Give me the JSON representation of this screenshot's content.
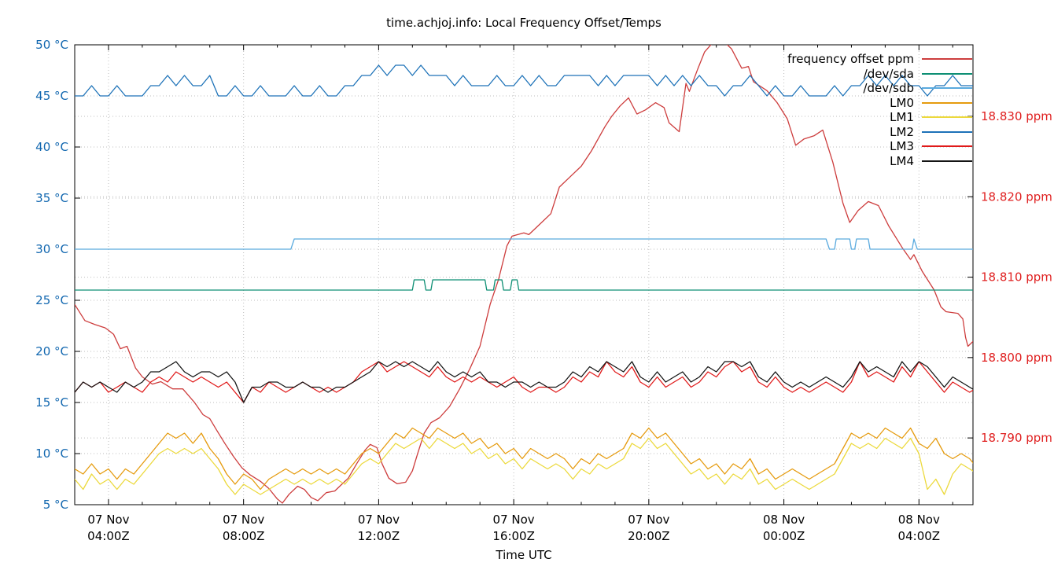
{
  "chart_data": {
    "type": "line",
    "title": "time.achjoj.info: Local Frequency Offset/Temps",
    "xlabel": "Time UTC",
    "grid": "dotted",
    "legend_position": "top-right-inside",
    "x_axis": {
      "unit": "hours UTC from 07 Nov 00:00Z",
      "range_hours": [
        3.0,
        29.6
      ],
      "major_tick_hours": [
        4,
        8,
        12,
        16,
        20,
        24,
        28
      ],
      "minor_tick_every_hours": 1,
      "major_tick_labels": [
        [
          "07 Nov",
          "04:00Z"
        ],
        [
          "07 Nov",
          "08:00Z"
        ],
        [
          "07 Nov",
          "12:00Z"
        ],
        [
          "07 Nov",
          "16:00Z"
        ],
        [
          "07 Nov",
          "20:00Z"
        ],
        [
          "08 Nov",
          "00:00Z"
        ],
        [
          "08 Nov",
          "04:00Z"
        ]
      ]
    },
    "y_left_axis": {
      "unit": "°C",
      "range": [
        5,
        50
      ],
      "ticks": [
        5,
        10,
        15,
        20,
        25,
        30,
        35,
        40,
        45,
        50
      ],
      "tick_suffix": " °C",
      "label_color": "#1368b0"
    },
    "y_right_axis": {
      "unit": "ppm",
      "range": [
        18.7817,
        18.8389
      ],
      "ticks": [
        18.79,
        18.8,
        18.81,
        18.82,
        18.83
      ],
      "tick_suffix": " ppm",
      "tick_decimals": 3,
      "label_color": "#e02222"
    },
    "series": [
      {
        "name": "frequency offset ppm",
        "color": "#cd3d3d",
        "axis": "right",
        "points": [
          [
            3.0,
            18.8066
          ],
          [
            3.3,
            18.8046
          ],
          [
            3.6,
            18.8041
          ],
          [
            3.9,
            18.8037
          ],
          [
            4.0,
            18.8034
          ],
          [
            4.15,
            18.8029
          ],
          [
            4.35,
            18.8011
          ],
          [
            4.55,
            18.8014
          ],
          [
            4.8,
            18.7987
          ],
          [
            5.0,
            18.7976
          ],
          [
            5.3,
            18.7967
          ],
          [
            5.55,
            18.797
          ],
          [
            5.9,
            18.7961
          ],
          [
            6.2,
            18.7961
          ],
          [
            6.55,
            18.7944
          ],
          [
            6.8,
            18.7929
          ],
          [
            7.0,
            18.7924
          ],
          [
            7.2,
            18.791
          ],
          [
            7.45,
            18.7893
          ],
          [
            7.7,
            18.7877
          ],
          [
            7.95,
            18.7863
          ],
          [
            8.2,
            18.7854
          ],
          [
            8.5,
            18.7846
          ],
          [
            8.75,
            18.7837
          ],
          [
            9.0,
            18.7824
          ],
          [
            9.15,
            18.7819
          ],
          [
            9.35,
            18.783
          ],
          [
            9.6,
            18.784
          ],
          [
            9.8,
            18.7836
          ],
          [
            10.0,
            18.7826
          ],
          [
            10.2,
            18.7822
          ],
          [
            10.45,
            18.7832
          ],
          [
            10.7,
            18.7834
          ],
          [
            10.9,
            18.7842
          ],
          [
            11.1,
            18.785
          ],
          [
            11.35,
            18.7868
          ],
          [
            11.6,
            18.7885
          ],
          [
            11.75,
            18.7892
          ],
          [
            11.95,
            18.7888
          ],
          [
            12.1,
            18.7868
          ],
          [
            12.3,
            18.785
          ],
          [
            12.55,
            18.7843
          ],
          [
            12.8,
            18.7845
          ],
          [
            13.0,
            18.7859
          ],
          [
            13.15,
            18.788
          ],
          [
            13.35,
            18.7906
          ],
          [
            13.55,
            18.7919
          ],
          [
            13.8,
            18.7925
          ],
          [
            14.1,
            18.7939
          ],
          [
            14.4,
            18.7961
          ],
          [
            14.7,
            18.7986
          ],
          [
            15.0,
            18.8014
          ],
          [
            15.3,
            18.8066
          ],
          [
            15.55,
            18.8097
          ],
          [
            15.8,
            18.8139
          ],
          [
            15.95,
            18.8151
          ],
          [
            16.3,
            18.8155
          ],
          [
            16.45,
            18.8153
          ],
          [
            16.7,
            18.8163
          ],
          [
            17.1,
            18.8179
          ],
          [
            17.35,
            18.8212
          ],
          [
            17.7,
            18.8226
          ],
          [
            18.0,
            18.8238
          ],
          [
            18.3,
            18.8257
          ],
          [
            18.7,
            18.8287
          ],
          [
            18.9,
            18.83
          ],
          [
            19.15,
            18.8313
          ],
          [
            19.4,
            18.8323
          ],
          [
            19.65,
            18.8303
          ],
          [
            19.9,
            18.8308
          ],
          [
            20.2,
            18.8317
          ],
          [
            20.45,
            18.8311
          ],
          [
            20.6,
            18.8292
          ],
          [
            20.9,
            18.8281
          ],
          [
            21.1,
            18.8341
          ],
          [
            21.2,
            18.8331
          ],
          [
            21.45,
            18.8359
          ],
          [
            21.65,
            18.838
          ],
          [
            21.9,
            18.8392
          ],
          [
            22.3,
            18.839
          ],
          [
            22.45,
            18.8384
          ],
          [
            22.75,
            18.836
          ],
          [
            22.95,
            18.8362
          ],
          [
            23.1,
            18.8343
          ],
          [
            23.5,
            18.8332
          ],
          [
            23.8,
            18.8317
          ],
          [
            24.1,
            18.8297
          ],
          [
            24.35,
            18.8264
          ],
          [
            24.6,
            18.8272
          ],
          [
            24.9,
            18.8276
          ],
          [
            25.15,
            18.8283
          ],
          [
            25.45,
            18.8243
          ],
          [
            25.75,
            18.8192
          ],
          [
            25.95,
            18.8168
          ],
          [
            26.2,
            18.8183
          ],
          [
            26.5,
            18.8194
          ],
          [
            26.8,
            18.8189
          ],
          [
            27.1,
            18.8164
          ],
          [
            27.5,
            18.8137
          ],
          [
            27.75,
            18.8122
          ],
          [
            27.85,
            18.8128
          ],
          [
            28.1,
            18.8107
          ],
          [
            28.45,
            18.8084
          ],
          [
            28.65,
            18.8063
          ],
          [
            28.8,
            18.8057
          ],
          [
            29.15,
            18.8055
          ],
          [
            29.3,
            18.8048
          ],
          [
            29.38,
            18.8025
          ],
          [
            29.45,
            18.8014
          ],
          [
            29.6,
            18.802
          ]
        ]
      },
      {
        "name": "/dev/sda",
        "color": "#0e8f74",
        "axis": "left",
        "points": [
          [
            3.0,
            26
          ],
          [
            13.0,
            26
          ],
          [
            13.05,
            27
          ],
          [
            13.35,
            27
          ],
          [
            13.4,
            26
          ],
          [
            13.55,
            26
          ],
          [
            13.6,
            27
          ],
          [
            15.15,
            27
          ],
          [
            15.2,
            26
          ],
          [
            15.4,
            26
          ],
          [
            15.45,
            27
          ],
          [
            15.65,
            27
          ],
          [
            15.7,
            26
          ],
          [
            15.9,
            26
          ],
          [
            15.95,
            27
          ],
          [
            16.1,
            27
          ],
          [
            16.15,
            26
          ],
          [
            29.6,
            26
          ]
        ]
      },
      {
        "name": "/dev/sdb",
        "color": "#5aaade",
        "axis": "left",
        "points": [
          [
            3.0,
            30
          ],
          [
            9.4,
            30
          ],
          [
            9.5,
            31
          ],
          [
            25.25,
            31
          ],
          [
            25.35,
            30
          ],
          [
            25.5,
            30
          ],
          [
            25.55,
            31
          ],
          [
            25.95,
            31
          ],
          [
            26.0,
            30
          ],
          [
            26.1,
            30
          ],
          [
            26.15,
            31
          ],
          [
            26.5,
            31
          ],
          [
            26.55,
            30
          ],
          [
            27.8,
            30
          ],
          [
            27.85,
            31
          ],
          [
            27.95,
            30
          ],
          [
            29.6,
            30
          ]
        ]
      },
      {
        "name": "LM0",
        "color": "#e59b0e",
        "axis": "left",
        "t0": 3.0,
        "dt": 0.25,
        "values": [
          8.5,
          8,
          9,
          8,
          8.5,
          7.5,
          8.5,
          8,
          9,
          10,
          11,
          12,
          11.5,
          12,
          11,
          12,
          10.5,
          9.5,
          8,
          7,
          8,
          7.5,
          6.5,
          7.5,
          8,
          8.5,
          8,
          8.5,
          8,
          8.5,
          8,
          8.5,
          8,
          9,
          10,
          10.5,
          10,
          11,
          12,
          11.5,
          12.5,
          12,
          11.5,
          12.5,
          12,
          11.5,
          12,
          11,
          11.5,
          10.5,
          11,
          10,
          10.5,
          9.5,
          10.5,
          10,
          9.5,
          10,
          9.5,
          8.5,
          9.5,
          9,
          10,
          9.5,
          10,
          10.5,
          12,
          11.5,
          12.5,
          11.5,
          12,
          11,
          10,
          9,
          9.5,
          8.5,
          9,
          8,
          9,
          8.5,
          9.5,
          8,
          8.5,
          7.5,
          8,
          8.5,
          8,
          7.5,
          8,
          8.5,
          9,
          10.5,
          12,
          11.5,
          12,
          11.5,
          12.5,
          12,
          11.5,
          12.5,
          11,
          10.5,
          11.5,
          10,
          9.5,
          10,
          9.5,
          8.5
        ]
      },
      {
        "name": "LM1",
        "color": "#ecd93c",
        "axis": "left",
        "t0": 3.0,
        "dt": 0.25,
        "values": [
          7.5,
          6.5,
          8,
          7,
          7.5,
          6.5,
          7.5,
          7,
          8,
          9,
          10,
          10.5,
          10,
          10.5,
          10,
          10.5,
          9.5,
          8.5,
          7,
          6,
          7,
          6.5,
          6,
          6.5,
          7,
          7.5,
          7,
          7.5,
          7,
          7.5,
          7,
          7.5,
          7,
          8,
          9,
          9.5,
          9,
          10,
          11,
          10.5,
          11,
          11.5,
          10.5,
          11.5,
          11,
          10.5,
          11,
          10,
          10.5,
          9.5,
          10,
          9,
          9.5,
          8.5,
          9.5,
          9,
          8.5,
          9,
          8.5,
          7.5,
          8.5,
          8,
          9,
          8.5,
          9,
          9.5,
          11,
          10.5,
          11.5,
          10.5,
          11,
          10,
          9,
          8,
          8.5,
          7.5,
          8,
          7,
          8,
          7.5,
          8.5,
          7,
          7.5,
          6.5,
          7,
          7.5,
          7,
          6.5,
          7,
          7.5,
          8,
          9.5,
          11,
          10.5,
          11,
          10.5,
          11.5,
          11,
          10.5,
          11.5,
          10,
          6.5,
          7.5,
          6,
          8,
          9,
          8.5,
          8
        ]
      },
      {
        "name": "LM2",
        "color": "#1d72b8",
        "axis": "left",
        "t0": 3.0,
        "dt": 0.25,
        "values": [
          45,
          45,
          46,
          45,
          45,
          46,
          45,
          45,
          45,
          46,
          46,
          47,
          46,
          47,
          46,
          46,
          47,
          45,
          45,
          46,
          45,
          45,
          46,
          45,
          45,
          45,
          46,
          45,
          45,
          46,
          45,
          45,
          46,
          46,
          47,
          47,
          48,
          47,
          48,
          48,
          47,
          48,
          47,
          47,
          47,
          46,
          47,
          46,
          46,
          46,
          47,
          46,
          46,
          47,
          46,
          47,
          46,
          46,
          47,
          47,
          47,
          47,
          46,
          47,
          46,
          47,
          47,
          47,
          47,
          46,
          47,
          46,
          47,
          46,
          47,
          46,
          46,
          45,
          46,
          46,
          47,
          46,
          45,
          46,
          45,
          45,
          46,
          45,
          45,
          45,
          46,
          45,
          46,
          46,
          47,
          46,
          47,
          46,
          47,
          46,
          46,
          45,
          46,
          46,
          47,
          46,
          46,
          46
        ]
      },
      {
        "name": "LM3",
        "color": "#e01a1a",
        "axis": "left",
        "t0": 3.0,
        "dt": 0.25,
        "values": [
          16,
          17,
          16.5,
          17,
          16,
          16.5,
          17,
          16.5,
          16,
          17,
          17.5,
          17,
          18,
          17.5,
          17,
          17.5,
          17,
          16.5,
          17,
          16,
          15,
          16.5,
          16,
          17,
          16.5,
          16,
          16.5,
          17,
          16.5,
          16,
          16.5,
          16,
          16.5,
          17,
          18,
          18.5,
          19,
          18,
          18.5,
          19,
          18.5,
          18,
          17.5,
          18.5,
          17.5,
          17,
          17.5,
          17,
          17.5,
          17,
          16.5,
          17,
          17.5,
          16.5,
          16,
          16.5,
          16.5,
          16,
          16.5,
          17.5,
          17,
          18,
          17.5,
          19,
          18,
          17.5,
          18.5,
          17,
          16.5,
          17.5,
          16.5,
          17,
          17.5,
          16.5,
          17,
          18,
          17.5,
          18.5,
          19,
          18,
          18.5,
          17,
          16.5,
          17.5,
          16.5,
          16,
          16.5,
          16,
          16.5,
          17,
          16.5,
          16,
          17,
          19,
          17.5,
          18,
          17.5,
          17,
          18.5,
          17.5,
          19,
          18,
          17,
          16,
          17,
          16.5,
          16,
          16.5
        ]
      },
      {
        "name": "LM4",
        "color": "#141414",
        "axis": "left",
        "t0": 3.0,
        "dt": 0.25,
        "values": [
          16,
          17,
          16.5,
          17,
          16.5,
          16,
          17,
          16.5,
          17,
          18,
          18,
          18.5,
          19,
          18,
          17.5,
          18,
          18,
          17.5,
          18,
          17,
          15,
          16.5,
          16.5,
          17,
          17,
          16.5,
          16.5,
          17,
          16.5,
          16.5,
          16,
          16.5,
          16.5,
          17,
          17.5,
          18,
          19,
          18.5,
          19,
          18.5,
          19,
          18.5,
          18,
          19,
          18,
          17.5,
          18,
          17.5,
          18,
          17,
          17,
          16.5,
          17,
          17,
          16.5,
          17,
          16.5,
          16.5,
          17,
          18,
          17.5,
          18.5,
          18,
          19,
          18.5,
          18,
          19,
          17.5,
          17,
          18,
          17,
          17.5,
          18,
          17,
          17.5,
          18.5,
          18,
          19,
          19,
          18.5,
          19,
          17.5,
          17,
          18,
          17,
          16.5,
          17,
          16.5,
          17,
          17.5,
          17,
          16.5,
          17.5,
          19,
          18,
          18.5,
          18,
          17.5,
          19,
          18,
          19,
          18.5,
          17.5,
          16.5,
          17.5,
          17,
          16.5,
          16
        ]
      }
    ]
  }
}
